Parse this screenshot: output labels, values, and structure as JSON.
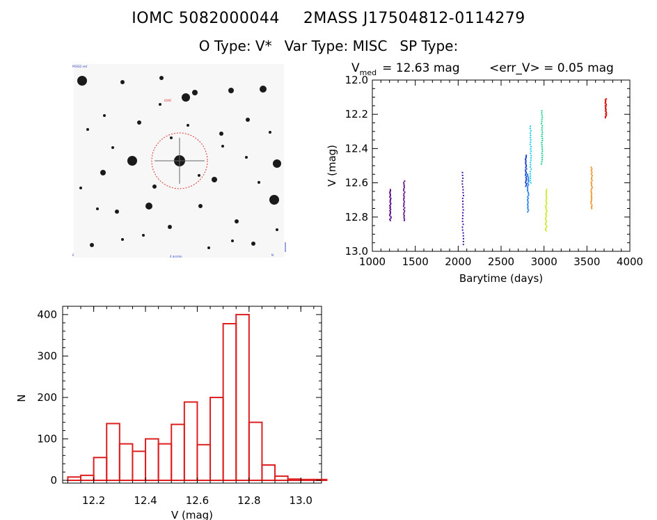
{
  "header": {
    "object_id": "IOMC 5082000044",
    "catalog_id": "2MASS J17504812-0114279",
    "otype": "O Type: V*",
    "vartype": "Var Type: MISC",
    "sptype": "SP Type:"
  },
  "chart_data": [
    {
      "type": "scatter",
      "title": "<err_V> = 0.05 mag",
      "title_prefix_main": "V",
      "title_prefix_sub": "med",
      "title_prefix_value": "= 12.63 mag",
      "xlabel": "Barytime (days)",
      "ylabel": "V (mag)",
      "xlim": [
        1000,
        4000
      ],
      "ylim": [
        13.0,
        12.0
      ],
      "y_inverted": true,
      "xticks": [
        1000,
        1500,
        2000,
        2500,
        3000,
        3500,
        4000
      ],
      "xtick_labels": [
        "1000",
        "1500",
        "2000",
        "2500",
        "3000",
        "3500",
        "4000"
      ],
      "yticks": [
        12.0,
        12.2,
        12.4,
        12.6,
        12.8,
        13.0
      ],
      "ytick_labels": [
        "12.0",
        "12.2",
        "12.4",
        "12.6",
        "12.8",
        "13.0"
      ],
      "groups": [
        {
          "x": 1210,
          "y_min": 12.64,
          "y_max": 12.82,
          "color": "#5a0a8c"
        },
        {
          "x": 1370,
          "y_min": 12.59,
          "y_max": 12.82,
          "color": "#5a0a8c"
        },
        {
          "x": 2055,
          "y_min": 12.54,
          "y_max": 12.96,
          "color": "#3c14a0"
        },
        {
          "x": 2790,
          "y_min": 12.44,
          "y_max": 12.62,
          "color": "#1e46d2"
        },
        {
          "x": 2815,
          "y_min": 12.55,
          "y_max": 12.77,
          "color": "#1e82f0"
        },
        {
          "x": 2845,
          "y_min": 12.27,
          "y_max": 12.6,
          "color": "#14c8e6"
        },
        {
          "x": 2975,
          "y_min": 12.18,
          "y_max": 12.49,
          "color": "#14d28c"
        },
        {
          "x": 3025,
          "y_min": 12.64,
          "y_max": 12.88,
          "color": "#c8e614"
        },
        {
          "x": 3555,
          "y_min": 12.51,
          "y_max": 12.75,
          "color": "#f08c14"
        },
        {
          "x": 3720,
          "y_min": 12.11,
          "y_max": 12.22,
          "color": "#dc1e14"
        }
      ]
    },
    {
      "type": "bar",
      "subtype": "histogram",
      "xlabel": "V (mag)",
      "ylabel": "N",
      "xlim": [
        12.08,
        13.08
      ],
      "ylim": [
        0,
        420
      ],
      "xticks": [
        12.2,
        12.4,
        12.6,
        12.8,
        13.0
      ],
      "xtick_labels": [
        "12.2",
        "12.4",
        "12.6",
        "12.8",
        "13.0"
      ],
      "yticks": [
        0,
        100,
        200,
        300,
        400
      ],
      "ytick_labels": [
        "0",
        "100",
        "200",
        "300",
        "400"
      ],
      "bin_width": 0.05,
      "bin_start": 12.1,
      "values": [
        8,
        12,
        55,
        137,
        88,
        70,
        100,
        88,
        135,
        189,
        86,
        200,
        378,
        400,
        140,
        37,
        10,
        3,
        2,
        2
      ],
      "color": "#dd1f1f"
    }
  ],
  "finder": {
    "top_left_label": "POSS2 red",
    "target_label": "IOMC",
    "bottom_center_label": "4 arcmin",
    "bottom_left_label": "E",
    "bottom_right_label": "N"
  }
}
